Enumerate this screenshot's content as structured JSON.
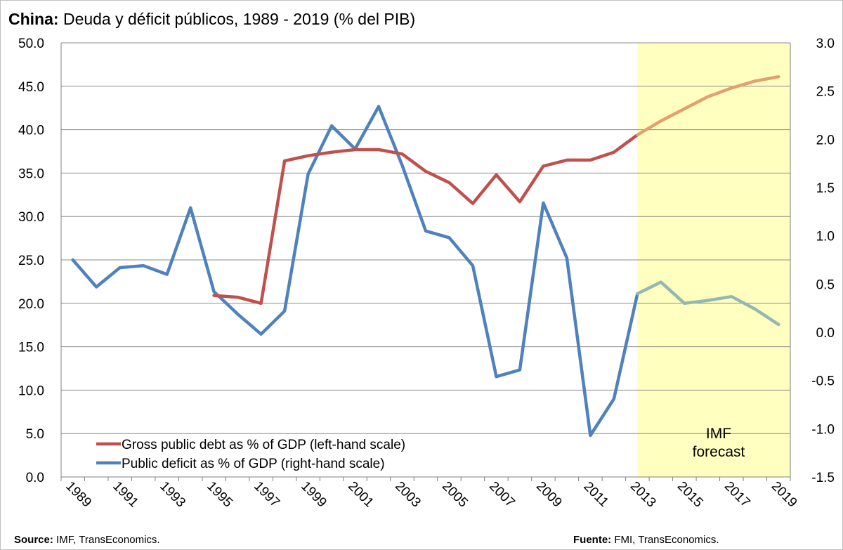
{
  "title": {
    "bold": "China:",
    "rest": " Deuda y déficit públicos, 1989 - 2019 (% del PIB)"
  },
  "footer": {
    "source_label": "Source:",
    "source_text": " IMF, TransEconomics.",
    "fuente_label": "Fuente:",
    "fuente_text": " FMI, TransEconomics."
  },
  "forecast_label": [
    "IMF",
    "forecast"
  ],
  "colors": {
    "debt": "#c0504d",
    "deficit": "#4f81bd",
    "debt_forecast": "#e3a06e",
    "deficit_forecast": "#92b8b0",
    "forecast_band": "#ffffc0",
    "grid": "#8c8c8c"
  },
  "chart_data": {
    "type": "line",
    "x": [
      1989,
      1990,
      1991,
      1992,
      1993,
      1994,
      1995,
      1996,
      1997,
      1998,
      1999,
      2000,
      2001,
      2002,
      2003,
      2004,
      2005,
      2006,
      2007,
      2008,
      2009,
      2010,
      2011,
      2012,
      2013,
      2014,
      2015,
      2016,
      2017,
      2018,
      2019
    ],
    "x_tick_labels": [
      "1989",
      "1991",
      "1993",
      "1995",
      "1997",
      "1999",
      "2001",
      "2003",
      "2005",
      "2007",
      "2009",
      "2011",
      "2013",
      "2015",
      "2017",
      "2019"
    ],
    "forecast_start": 2013,
    "left_axis": {
      "ylim": [
        0,
        50
      ],
      "ticks": [
        "0.0",
        "5.0",
        "10.0",
        "15.0",
        "20.0",
        "25.0",
        "30.0",
        "35.0",
        "40.0",
        "45.0",
        "50.0"
      ]
    },
    "right_axis": {
      "ylim": [
        -1.5,
        3.0
      ],
      "ticks": [
        "-1.5",
        "-1.0",
        "-0.5",
        "0.0",
        "0.5",
        "1.0",
        "1.5",
        "2.0",
        "2.5",
        "3.0"
      ]
    },
    "grid": true,
    "legend_position": "bottom-left",
    "series": [
      {
        "name": "Gross public debt as % of GDP (left-hand scale)",
        "axis": "left",
        "values": [
          null,
          null,
          null,
          null,
          null,
          null,
          20.9,
          20.7,
          20.0,
          36.4,
          37.0,
          37.4,
          37.7,
          37.7,
          37.2,
          35.2,
          33.9,
          31.5,
          34.8,
          31.7,
          35.8,
          36.5,
          36.5,
          37.4,
          39.4,
          41.0,
          42.4,
          43.8,
          44.8,
          45.6,
          46.1
        ]
      },
      {
        "name": "Public deficit as % of GDP (right-hand scale)",
        "axis": "right",
        "values": [
          0.75,
          0.47,
          0.67,
          0.69,
          0.6,
          1.29,
          0.42,
          0.19,
          -0.02,
          0.22,
          1.64,
          2.14,
          1.9,
          2.34,
          1.73,
          1.05,
          0.98,
          0.69,
          -0.46,
          -0.39,
          1.34,
          0.77,
          -1.07,
          -0.69,
          0.4,
          0.52,
          0.3,
          0.33,
          0.37,
          0.24,
          0.08
        ]
      }
    ]
  }
}
